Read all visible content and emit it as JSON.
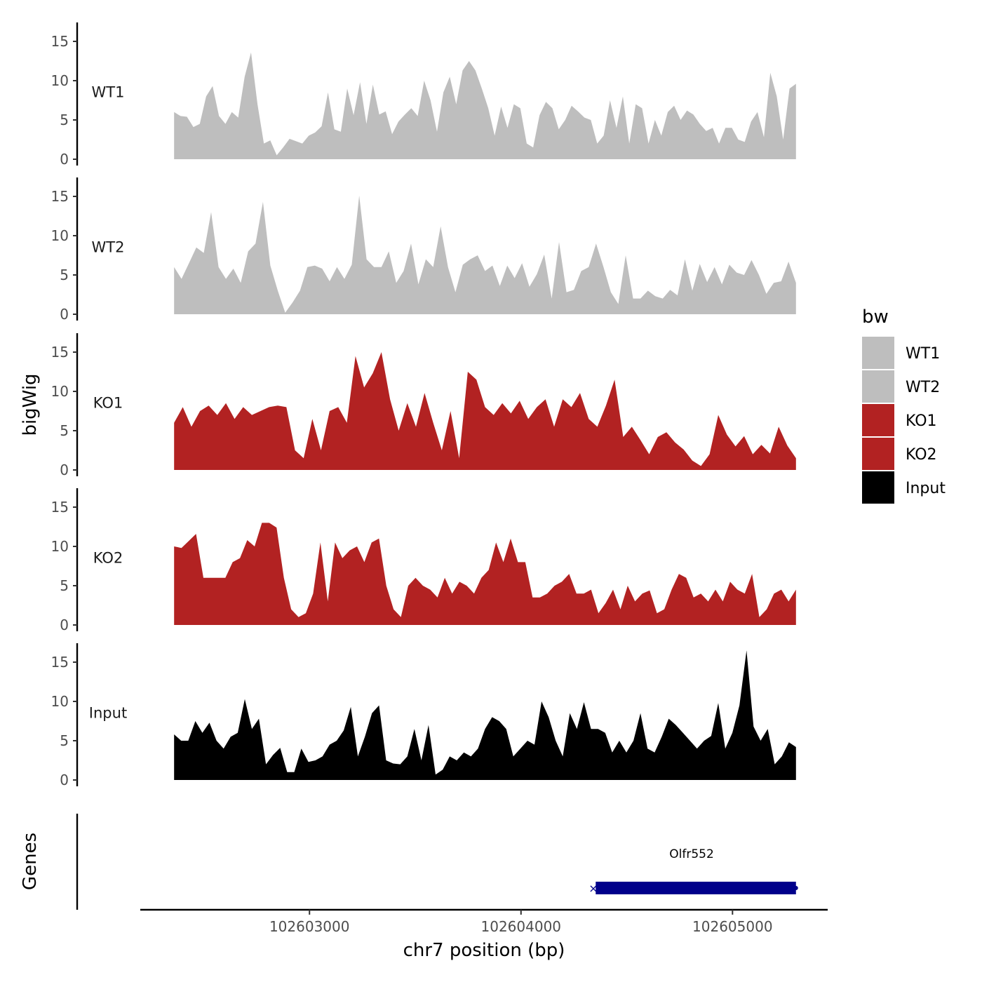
{
  "chart_data": {
    "type": "area",
    "ylabel": "bigWig",
    "xlabel": "chr7 position (bp)",
    "genes_label": "Genes",
    "xlim": [
      102602200,
      102605450
    ],
    "x_ticks": [
      102603000,
      102604000,
      102605000
    ],
    "x_tick_labels": [
      "102603000",
      "102604000",
      "102605000"
    ],
    "ylim": [
      0,
      17
    ],
    "y_ticks": [
      0,
      5,
      10,
      15
    ],
    "y_tick_labels": [
      "0",
      "5",
      "10",
      "15"
    ],
    "x_start": 102602360,
    "x_end": 102605300,
    "legend": {
      "title": "bw",
      "entries": [
        {
          "label": "WT1",
          "color": "#bebebe"
        },
        {
          "label": "WT2",
          "color": "#bebebe"
        },
        {
          "label": "KO1",
          "color": "#b22222"
        },
        {
          "label": "KO2",
          "color": "#b22222"
        },
        {
          "label": "Input",
          "color": "#000000"
        }
      ]
    },
    "series": [
      {
        "name": "WT1",
        "color": "#bebebe",
        "values": [
          6,
          5.5,
          5.4,
          4.1,
          4.5,
          8,
          9.3,
          5.5,
          4.5,
          6,
          5.3,
          10.5,
          13.6,
          7,
          2,
          2.4,
          0.5,
          1.5,
          2.6,
          2.3,
          2,
          3,
          3.4,
          4.2,
          8.5,
          3.8,
          3.5,
          9,
          5.6,
          9.8,
          4.5,
          9.5,
          5.7,
          6.1,
          3.2,
          4.8,
          5.7,
          6.5,
          5.5,
          10,
          7.5,
          3.5,
          8.5,
          10.5,
          7,
          11.3,
          12.5,
          11.3,
          9,
          6.5,
          3,
          6.7,
          4,
          7,
          6.5,
          2,
          1.5,
          5.6,
          7.3,
          6.5,
          3.8,
          5,
          6.8,
          6.1,
          5.3,
          5,
          2,
          3,
          7.5,
          4,
          8,
          2,
          7,
          6.5,
          2,
          5,
          3,
          6,
          6.8,
          5,
          6.2,
          5.7,
          4.5,
          3.6,
          4,
          2,
          4,
          4,
          2.5,
          2.2,
          4.8,
          6,
          2.8,
          11,
          8,
          2.5,
          9,
          9.6
        ]
      },
      {
        "name": "WT2",
        "color": "#bebebe",
        "values": [
          6,
          4.5,
          6.5,
          8.5,
          7.8,
          13,
          6,
          4.5,
          5.8,
          4,
          8,
          9,
          14.3,
          6.2,
          3,
          0.2,
          1.5,
          3,
          6,
          6.2,
          5.8,
          4.2,
          6,
          4.5,
          6.3,
          15.1,
          7,
          6,
          6,
          8,
          4,
          5.5,
          9,
          3.8,
          7,
          6,
          11.2,
          6,
          2.8,
          6.3,
          7,
          7.5,
          5.5,
          6.2,
          3.6,
          6.2,
          4.6,
          6.5,
          3.5,
          5.1,
          7.6,
          2,
          9.2,
          2.8,
          3.1,
          5.5,
          6,
          9,
          6,
          2.8,
          1.3,
          7.5,
          2,
          2,
          3,
          2.3,
          2,
          3.1,
          2.4,
          7,
          3,
          6.4,
          4.1,
          6,
          3.8,
          6.3,
          5.3,
          5,
          6.9,
          5,
          2.6,
          4,
          4.2,
          6.7,
          4
        ]
      },
      {
        "name": "KO1",
        "color": "#b22222",
        "values": [
          6,
          8,
          5.5,
          7.5,
          8.2,
          7,
          8.5,
          6.5,
          8,
          7,
          7.5,
          8,
          8.2,
          8,
          2.5,
          1.5,
          6.5,
          2.5,
          7.5,
          8,
          6,
          14.5,
          10.5,
          12.3,
          15,
          9,
          5,
          8.5,
          5.5,
          9.8,
          6,
          2.5,
          7.5,
          1.5,
          12.5,
          11.5,
          8,
          7,
          8.5,
          7.2,
          8.8,
          6.5,
          8,
          9,
          5.5,
          9,
          8,
          9.8,
          6.5,
          5.5,
          8.2,
          11.5,
          4.2,
          5.5,
          3.8,
          2,
          4.2,
          4.8,
          3.5,
          2.6,
          1.2,
          0.5,
          2,
          7,
          4.5,
          3,
          4.3,
          2,
          3.2,
          2.1,
          5.5,
          3.1,
          1.5
        ]
      },
      {
        "name": "KO2",
        "color": "#b22222",
        "values": [
          10,
          9.8,
          10.7,
          11.6,
          6,
          6,
          6,
          6,
          8,
          8.5,
          10.8,
          10,
          13,
          13,
          12.4,
          6,
          2,
          1,
          1.5,
          4,
          10.5,
          3,
          10.5,
          8.5,
          9.5,
          10,
          8,
          10.5,
          11,
          5,
          2,
          1,
          5,
          6,
          5,
          4.5,
          3.5,
          6,
          4,
          5.5,
          5,
          4,
          6,
          7,
          10.5,
          8,
          11,
          8,
          8,
          3.5,
          3.5,
          4,
          5,
          5.5,
          6.5,
          4,
          4,
          4.5,
          1.5,
          2.8,
          4.5,
          2,
          5,
          3,
          4,
          4.4,
          1.5,
          2,
          4.5,
          6.5,
          6,
          3.5,
          4,
          3,
          4.5,
          3,
          5.5,
          4.5,
          4,
          6.5,
          1,
          2,
          4,
          4.5,
          3,
          4.5
        ]
      },
      {
        "name": "Input",
        "color": "#000000",
        "values": [
          5.8,
          5,
          5,
          7.5,
          6,
          7.3,
          5,
          4,
          5.5,
          6,
          10.3,
          6.5,
          7.8,
          2,
          3.2,
          4.1,
          1,
          1,
          4,
          2.3,
          2.5,
          3,
          4.5,
          5,
          6.3,
          9.3,
          3,
          5.5,
          8.5,
          9.5,
          2.5,
          2.1,
          2,
          3,
          6.5,
          2.5,
          7,
          0.7,
          1.3,
          3,
          2.5,
          3.5,
          3,
          4,
          6.5,
          8,
          7.5,
          6.5,
          3,
          4,
          5,
          4.5,
          10,
          8,
          5,
          3,
          8.5,
          6.5,
          9.9,
          6.5,
          6.5,
          6,
          3.5,
          5,
          3.5,
          5,
          8.5,
          4,
          3.5,
          5.5,
          7.8,
          7,
          6,
          5,
          4,
          5,
          5.6,
          9.8,
          4,
          6,
          9.5,
          16.5,
          6.8,
          5,
          6.5,
          2,
          3,
          4.8,
          4.2
        ]
      }
    ],
    "genes": [
      {
        "name": "Olfr552",
        "start": 102604340,
        "end": 102605300,
        "strand": "-",
        "color": "#00008b"
      }
    ]
  }
}
